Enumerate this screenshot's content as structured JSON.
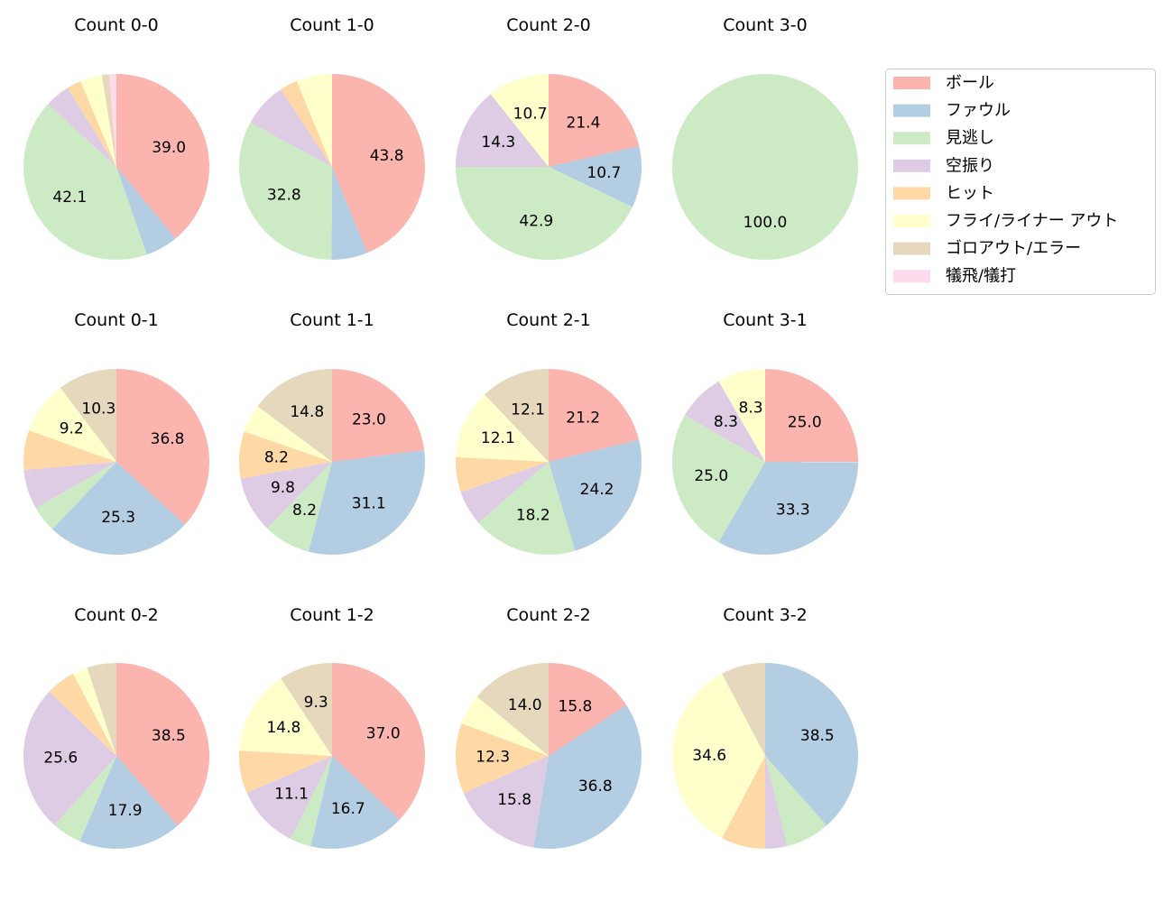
{
  "chart_data": {
    "type": "pie",
    "categories": [
      "ボール",
      "ファウル",
      "見逃し",
      "空振り",
      "ヒット",
      "フライ/ライナー アウト",
      "ゴロアウト/エラー",
      "犠飛/犠打"
    ],
    "colors": [
      "#fbb4ae",
      "#b3cde3",
      "#ccebc5",
      "#decbe4",
      "#fed9a6",
      "#ffffcc",
      "#e5d8bd",
      "#fddaec"
    ],
    "legend_position": "top-right",
    "label_threshold_percent": 8,
    "charts": [
      {
        "title": "Count 0-0",
        "values": [
          39.0,
          5.7,
          42.1,
          4.4,
          2.5,
          3.8,
          1.3,
          1.2
        ]
      },
      {
        "title": "Count 1-0",
        "values": [
          43.8,
          6.3,
          32.8,
          7.8,
          3.1,
          6.2,
          0,
          0
        ]
      },
      {
        "title": "Count 2-0",
        "values": [
          21.4,
          10.7,
          42.9,
          14.3,
          0,
          10.7,
          0,
          0
        ]
      },
      {
        "title": "Count 3-0",
        "values": [
          0,
          0,
          100.0,
          0,
          0,
          0,
          0,
          0
        ]
      },
      {
        "title": "Count 0-1",
        "values": [
          36.8,
          25.3,
          4.6,
          6.9,
          6.9,
          9.2,
          10.3,
          0
        ]
      },
      {
        "title": "Count 1-1",
        "values": [
          23.0,
          31.1,
          8.2,
          9.8,
          8.2,
          4.9,
          14.8,
          0
        ]
      },
      {
        "title": "Count 2-1",
        "values": [
          21.2,
          24.2,
          18.2,
          6.1,
          6.1,
          12.1,
          12.1,
          0
        ]
      },
      {
        "title": "Count 3-1",
        "values": [
          25.0,
          33.3,
          25.0,
          8.3,
          0,
          8.3,
          0,
          0
        ]
      },
      {
        "title": "Count 0-2",
        "values": [
          38.5,
          17.9,
          5.1,
          25.6,
          5.1,
          2.6,
          5.1,
          0
        ]
      },
      {
        "title": "Count 1-2",
        "values": [
          37.0,
          16.7,
          3.7,
          11.1,
          7.4,
          14.8,
          9.3,
          0
        ]
      },
      {
        "title": "Count 2-2",
        "values": [
          15.8,
          36.8,
          0,
          15.8,
          12.3,
          5.3,
          14.0,
          0
        ]
      },
      {
        "title": "Count 3-2",
        "values": [
          0,
          38.5,
          7.7,
          3.8,
          7.7,
          34.6,
          7.7,
          0
        ]
      }
    ]
  }
}
